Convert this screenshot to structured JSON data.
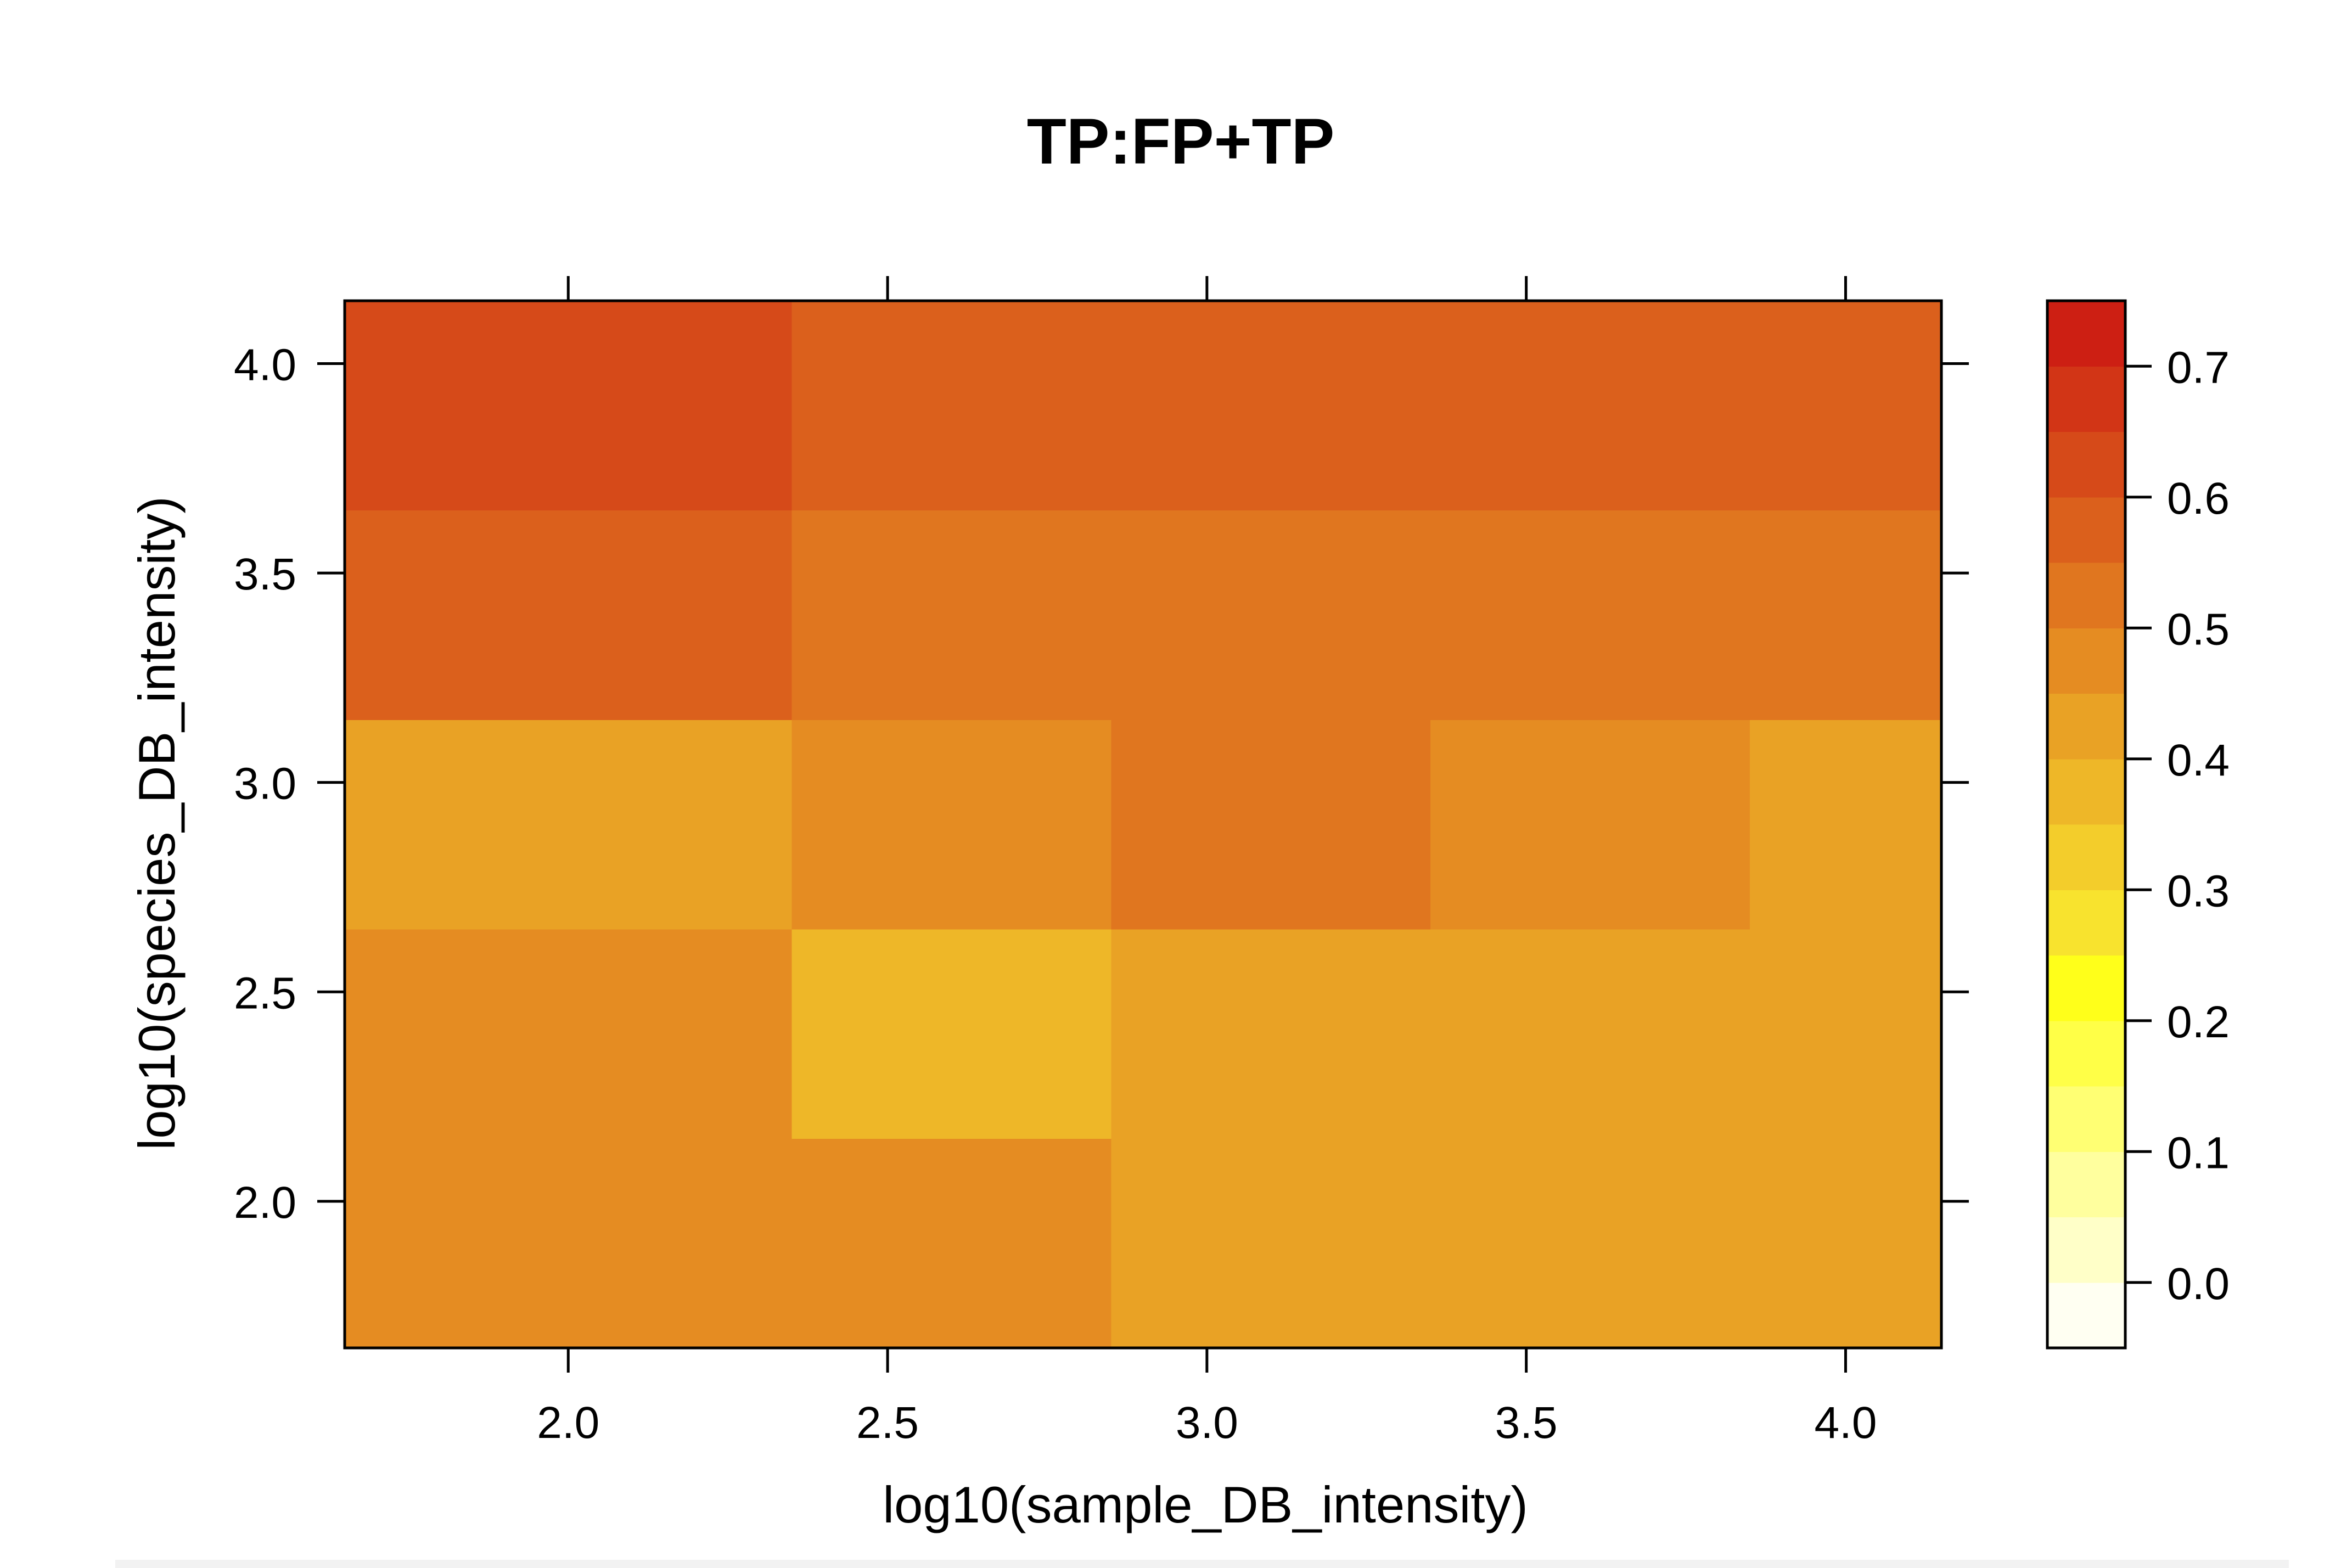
{
  "chart_data": {
    "type": "heatmap",
    "title": "TP:FP+TP",
    "xlabel": "log10(sample_DB_intensity)",
    "ylabel": "log10(species_DB_intensity)",
    "x_ticks": [
      "2.0",
      "2.5",
      "3.0",
      "3.5",
      "4.0"
    ],
    "y_ticks": [
      "2.0",
      "2.5",
      "3.0",
      "3.5",
      "4.0"
    ],
    "xlim": [
      1.65,
      4.15
    ],
    "ylim": [
      1.65,
      4.15
    ],
    "x_edges": [
      1.65,
      2.35,
      2.85,
      3.35,
      3.85,
      4.15
    ],
    "y_edges": [
      1.65,
      2.15,
      2.65,
      3.15,
      3.65,
      4.15
    ],
    "cells": [
      [
        0.47,
        0.47,
        0.43,
        0.43,
        0.43
      ],
      [
        0.47,
        0.38,
        0.43,
        0.43,
        0.43
      ],
      [
        0.43,
        0.47,
        0.52,
        0.47,
        0.43
      ],
      [
        0.57,
        0.52,
        0.52,
        0.52,
        0.52
      ],
      [
        0.62,
        0.57,
        0.57,
        0.57,
        0.57
      ]
    ],
    "colorbar": {
      "ticks": [
        "0.0",
        "0.1",
        "0.2",
        "0.3",
        "0.4",
        "0.5",
        "0.6",
        "0.7"
      ],
      "tick_values": [
        0.0,
        0.1,
        0.2,
        0.3,
        0.4,
        0.5,
        0.6,
        0.7
      ],
      "breaks": [
        -0.05,
        0.0,
        0.05,
        0.1,
        0.15,
        0.2,
        0.25,
        0.3,
        0.35,
        0.4,
        0.45,
        0.5,
        0.55,
        0.6,
        0.65,
        0.7,
        0.75
      ],
      "colors": [
        "#FFFFF2",
        "#FFFFC8",
        "#FFFF9E",
        "#FFFF73",
        "#FFFF47",
        "#FFFF1A",
        "#F8E32E",
        "#F3CD2B",
        "#EEB728",
        "#E9A225",
        "#E58C22",
        "#E0761F",
        "#DB601C",
        "#D64A19",
        "#D23516",
        "#CD1F13"
      ]
    },
    "grid": false
  }
}
